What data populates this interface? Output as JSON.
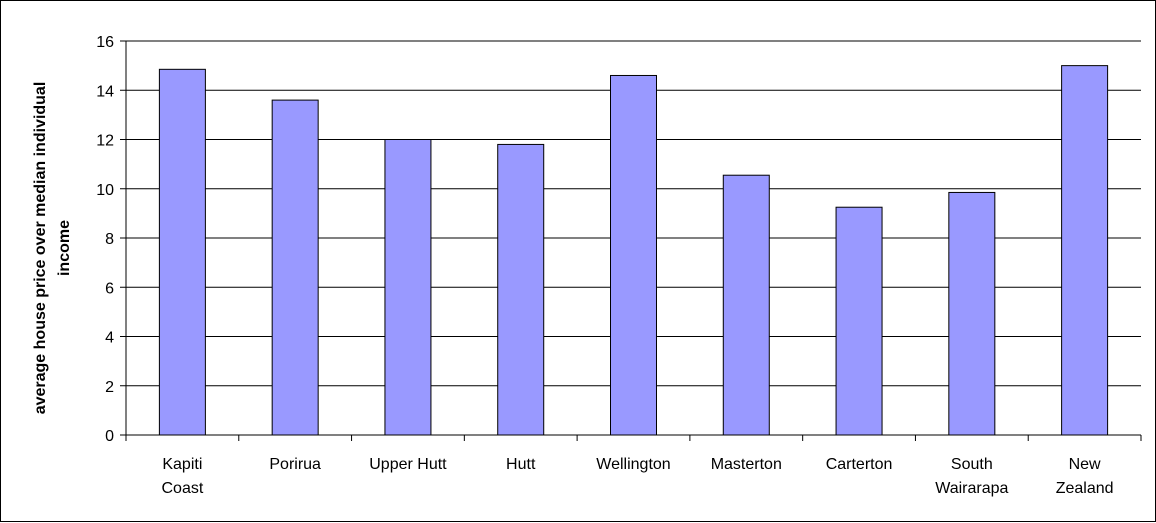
{
  "chart_data": {
    "type": "bar",
    "title": "",
    "xlabel": "",
    "ylabel_lines": [
      "average house price over median individual",
      "income"
    ],
    "categories": [
      [
        "Kapiti",
        "Coast"
      ],
      [
        "Porirua"
      ],
      [
        "Upper Hutt"
      ],
      [
        "Hutt"
      ],
      [
        "Wellington"
      ],
      [
        "Masterton"
      ],
      [
        "Carterton"
      ],
      [
        "South",
        "Wairarapa"
      ],
      [
        "New",
        "Zealand"
      ]
    ],
    "values": [
      14.85,
      13.6,
      12.0,
      11.8,
      14.6,
      10.55,
      9.25,
      9.85,
      15.0
    ],
    "ylim": [
      0,
      16
    ],
    "yticks": [
      0,
      2,
      4,
      6,
      8,
      10,
      12,
      14,
      16
    ],
    "grid": true,
    "legend": "none",
    "colors": {
      "bar_fill": "#9999ff",
      "bar_stroke": "#000000",
      "grid": "#000000",
      "axis": "#000000"
    }
  }
}
